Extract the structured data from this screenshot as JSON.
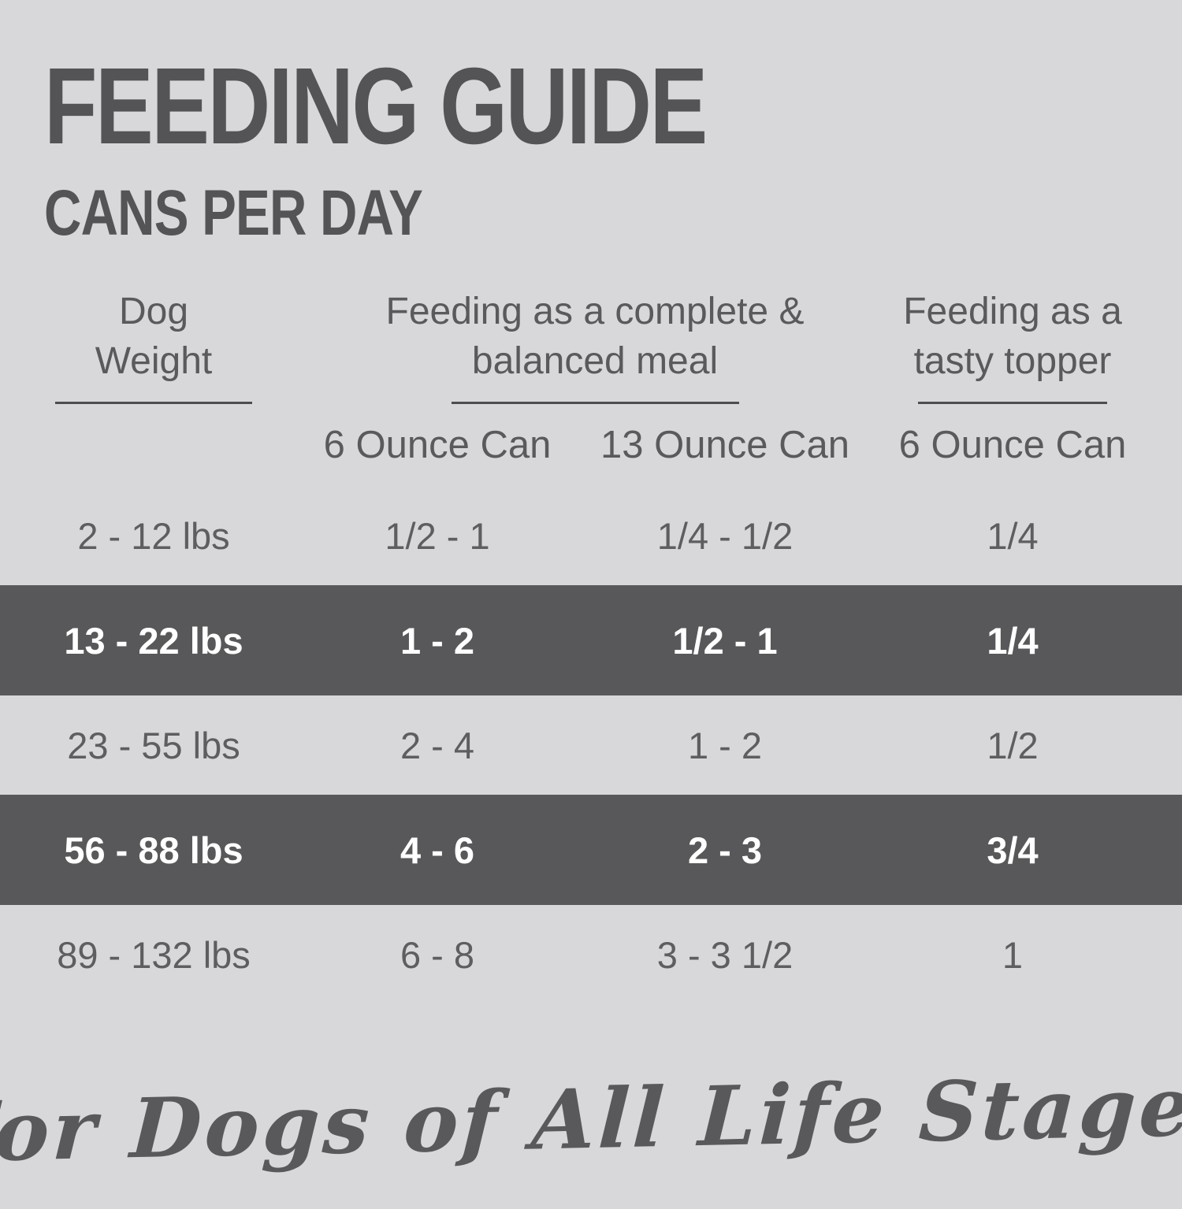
{
  "colors": {
    "background": "#d8d8da",
    "highlight_band": "#58585a",
    "dark_text": "#545457",
    "body_text": "#5e5e61",
    "white_text": "#ffffff",
    "underline": "#4d4d50"
  },
  "header": {
    "title": "FEEDING GUIDE",
    "subtitle": "CANS PER DAY"
  },
  "table": {
    "groups": [
      {
        "line1": "Dog",
        "line2": "Weight"
      },
      {
        "line1": "Feeding as a complete &",
        "line2": "balanced meal"
      },
      {
        "line1": "Feeding as a",
        "line2": "tasty topper"
      }
    ],
    "subheaders": [
      "6 Ounce Can",
      "13 Ounce Can",
      "6 Ounce Can"
    ],
    "rows": [
      {
        "weight": "2 - 12 lbs",
        "complete_6oz": "1/2 - 1",
        "complete_13oz": "1/4 - 1/2",
        "topper_6oz": "1/4",
        "highlighted": false
      },
      {
        "weight": "13 - 22 lbs",
        "complete_6oz": "1 - 2",
        "complete_13oz": "1/2 - 1",
        "topper_6oz": "1/4",
        "highlighted": true
      },
      {
        "weight": "23 - 55 lbs",
        "complete_6oz": "2 - 4",
        "complete_13oz": "1 - 2",
        "topper_6oz": "1/2",
        "highlighted": false
      },
      {
        "weight": "56 - 88 lbs",
        "complete_6oz": "4 - 6",
        "complete_13oz": "2 - 3",
        "topper_6oz": "3/4",
        "highlighted": true
      },
      {
        "weight": "89 - 132 lbs",
        "complete_6oz": "6 - 8",
        "complete_13oz": "3 - 3 1/2",
        "topper_6oz": "1",
        "highlighted": false
      }
    ]
  },
  "footer": {
    "tagline": "For Dogs of All Life Stages"
  },
  "chart_data": {
    "type": "table",
    "title": "FEEDING GUIDE",
    "subtitle": "CANS PER DAY",
    "column_groups": [
      "Dog Weight",
      "Feeding as a complete & balanced meal",
      "Feeding as a tasty topper"
    ],
    "columns": [
      "Dog Weight",
      "Complete & balanced meal - 6 Ounce Can",
      "Complete & balanced meal - 13 Ounce Can",
      "Tasty topper - 6 Ounce Can"
    ],
    "rows": [
      [
        "2 - 12 lbs",
        "1/2 - 1",
        "1/4 - 1/2",
        "1/4"
      ],
      [
        "13 - 22 lbs",
        "1 - 2",
        "1/2 - 1",
        "1/4"
      ],
      [
        "23 - 55 lbs",
        "2 - 4",
        "1 - 2",
        "1/2"
      ],
      [
        "56 - 88 lbs",
        "4 - 6",
        "2 - 3",
        "3/4"
      ],
      [
        "89 - 132 lbs",
        "6 - 8",
        "3 - 3 1/2",
        "1"
      ]
    ],
    "highlighted_row_indices": [
      1,
      3
    ],
    "footnote": "For Dogs of All Life Stages",
    "legend_position": "none",
    "grid": false
  }
}
